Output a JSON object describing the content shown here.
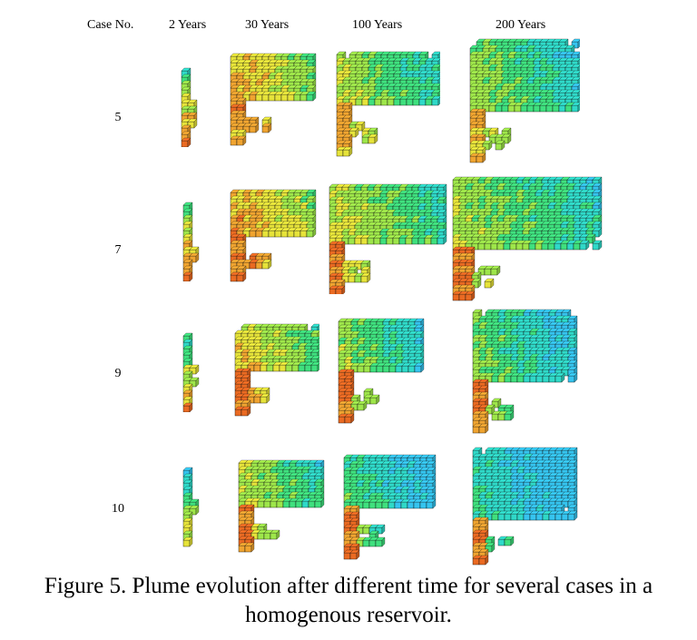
{
  "figure": {
    "header_case": "Case No.",
    "time_labels": [
      "2 Years",
      "30 Years",
      "100 Years",
      "200 Years"
    ],
    "cases": [
      "5",
      "7",
      "9",
      "10"
    ],
    "caption_line1": "Figure 5. Plume evolution after different time for several cases in a",
    "caption_line2": "homogenous reservoir.",
    "colors": {
      "blue": "#35c4ef",
      "cyan": "#2fd9c8",
      "green": "#3fe07e",
      "lime": "#9ee64a",
      "yellow": "#e6e33a",
      "orange": "#f0a430",
      "red": "#ea6a22",
      "grid": "#111111"
    }
  }
}
